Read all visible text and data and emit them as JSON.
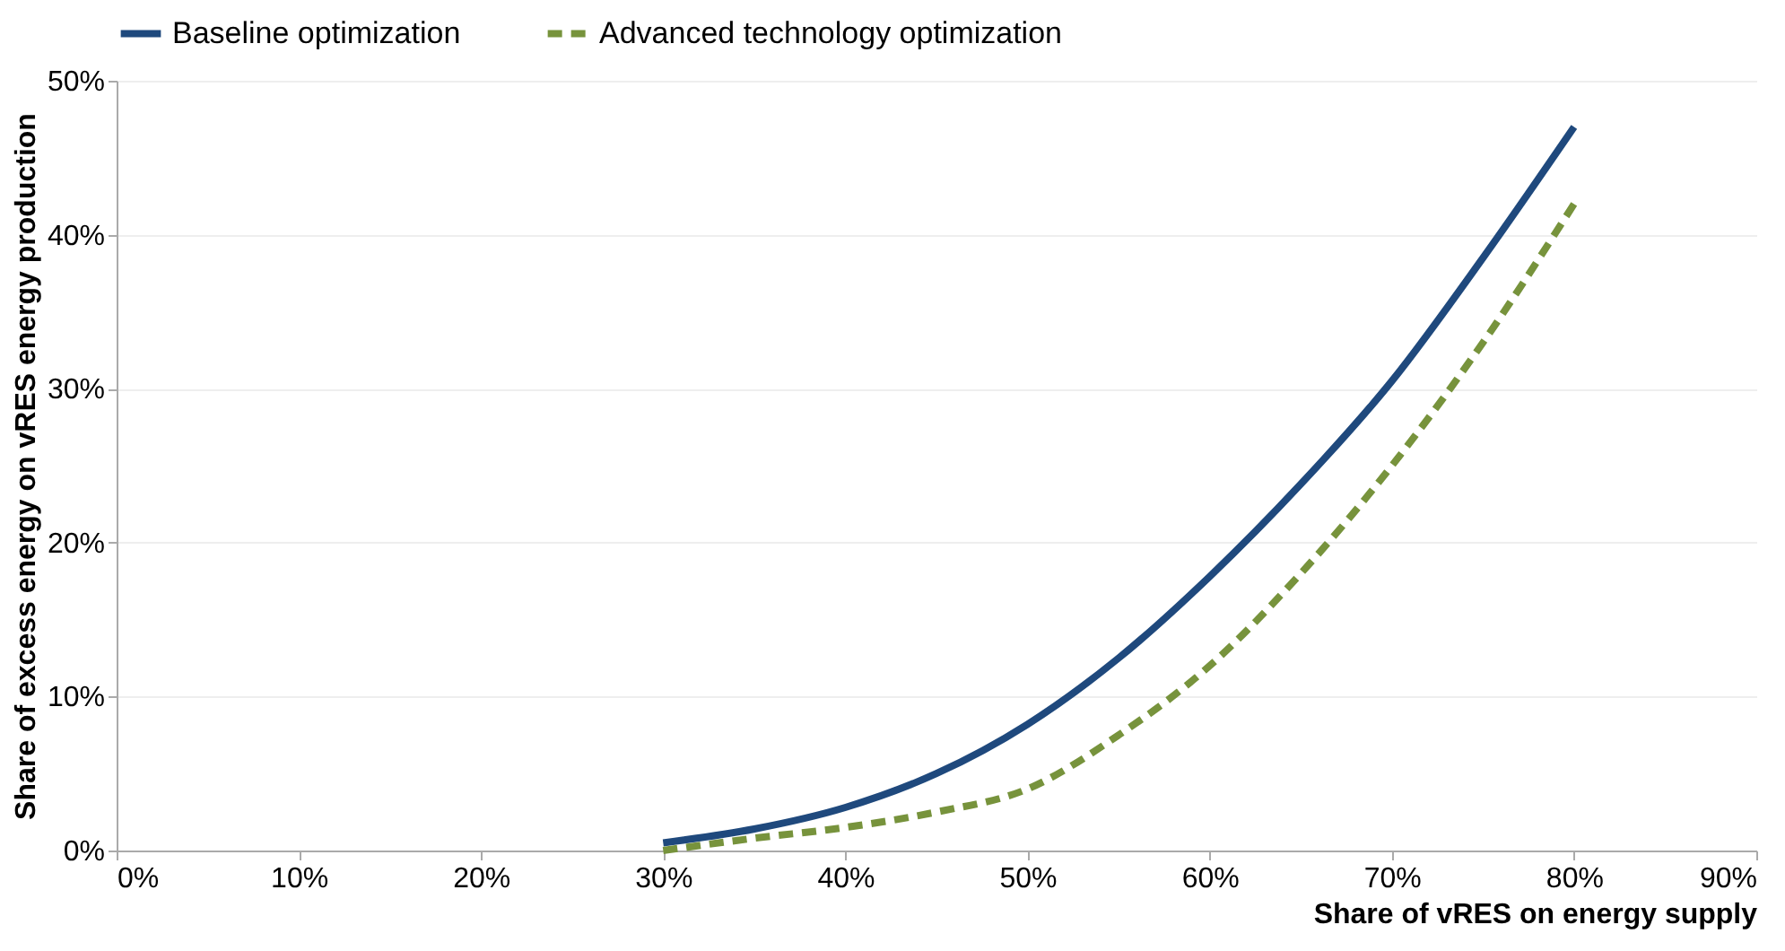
{
  "chart_data": {
    "type": "line",
    "xlabel": "Share of vRES on energy supply",
    "ylabel": "Share of excess energy on vRES energy production",
    "x": [
      30,
      35,
      40,
      45,
      50,
      55,
      60,
      65,
      70,
      75,
      80
    ],
    "series": [
      {
        "name": "Baseline optimization",
        "color": "#1f497d",
        "line_style": "solid",
        "values": [
          0.5,
          1.4,
          2.8,
          5,
          8.2,
          12.5,
          17.8,
          23.8,
          30.5,
          38.5,
          47
        ]
      },
      {
        "name": "Advanced technology optimization",
        "color": "#77933c",
        "line_style": "dashed",
        "values": [
          0,
          0.8,
          1.5,
          2.5,
          4,
          7.5,
          12,
          18,
          25,
          33,
          42
        ]
      }
    ],
    "xlim": [
      0,
      90
    ],
    "ylim": [
      0,
      50
    ],
    "xticks": [
      {
        "value": 0,
        "label": "0%"
      },
      {
        "value": 10,
        "label": "10%"
      },
      {
        "value": 20,
        "label": "20%"
      },
      {
        "value": 30,
        "label": "30%"
      },
      {
        "value": 40,
        "label": "40%"
      },
      {
        "value": 50,
        "label": "50%"
      },
      {
        "value": 60,
        "label": "60%"
      },
      {
        "value": 70,
        "label": "70%"
      },
      {
        "value": 80,
        "label": "80%"
      },
      {
        "value": 90,
        "label": "90%"
      }
    ],
    "yticks": [
      {
        "value": 0,
        "label": "0%"
      },
      {
        "value": 10,
        "label": "10%"
      },
      {
        "value": 20,
        "label": "20%"
      },
      {
        "value": 30,
        "label": "30%"
      },
      {
        "value": 40,
        "label": "40%"
      },
      {
        "value": 50,
        "label": "50%"
      }
    ],
    "grid": "y",
    "legend": "top",
    "marker": "none"
  }
}
